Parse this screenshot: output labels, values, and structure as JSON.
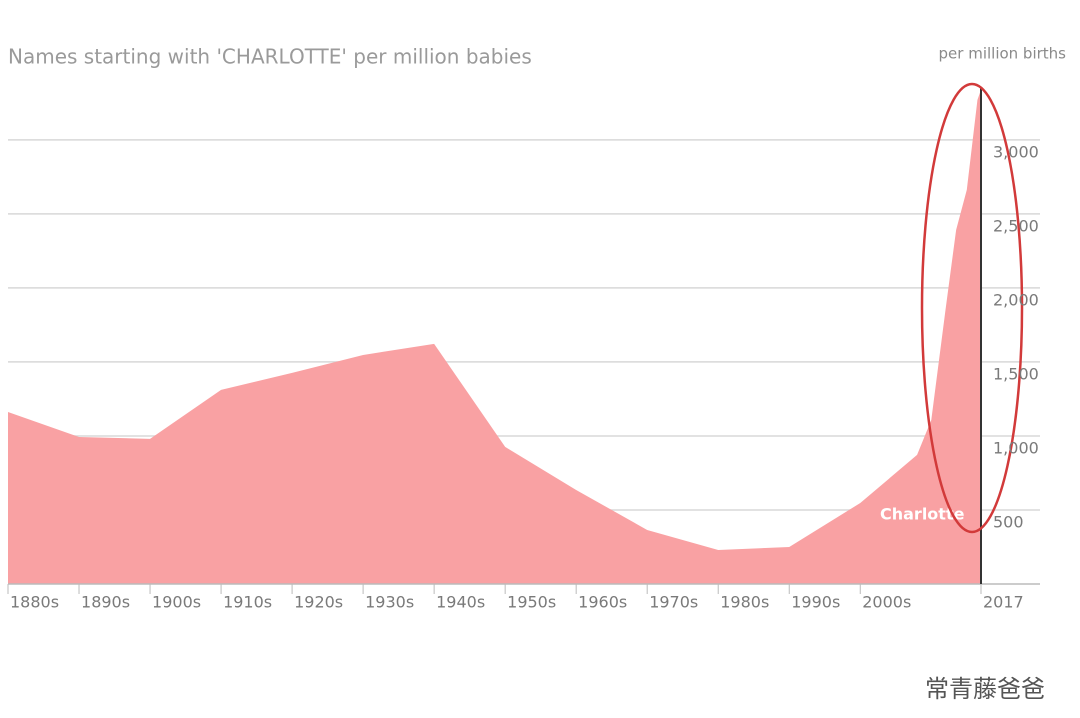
{
  "chart_data": {
    "type": "area",
    "title": "Names starting with 'CHARLOTTE' per million babies",
    "y_axis_label": "per million births",
    "annotation": "Charlotte",
    "watermark": "常青藤爸爸",
    "color": "#f9a1a3",
    "grid": true,
    "x": [
      1880,
      1890,
      1900,
      1910,
      1920,
      1930,
      1940,
      1950,
      1960,
      1970,
      1980,
      1990,
      2000,
      2008,
      2010,
      2012,
      2013.5,
      2015,
      2016.5,
      2017
    ],
    "values": [
      1162,
      993,
      980,
      1311,
      1426,
      1547,
      1622,
      926,
      635,
      365,
      230,
      250,
      547,
      872,
      1108,
      1851,
      2392,
      2662,
      3270,
      3338
    ],
    "xlim": [
      1880,
      2017
    ],
    "xticks": [
      {
        "value": 1880,
        "label": "1880s"
      },
      {
        "value": 1890,
        "label": "1890s"
      },
      {
        "value": 1900,
        "label": "1900s"
      },
      {
        "value": 1910,
        "label": "1910s"
      },
      {
        "value": 1920,
        "label": "1920s"
      },
      {
        "value": 1930,
        "label": "1930s"
      },
      {
        "value": 1940,
        "label": "1940s"
      },
      {
        "value": 1950,
        "label": "1950s"
      },
      {
        "value": 1960,
        "label": "1960s"
      },
      {
        "value": 1970,
        "label": "1970s"
      },
      {
        "value": 1980,
        "label": "1980s"
      },
      {
        "value": 1990,
        "label": "1990s"
      },
      {
        "value": 2000,
        "label": "2000s"
      },
      2017
    ],
    "ylim": [
      0,
      3350
    ],
    "yticks": [
      500,
      {
        "value": 1000,
        "label": "1,000"
      },
      {
        "value": 1500,
        "label": "1,500"
      },
      {
        "value": 2000,
        "label": "2,000"
      },
      {
        "value": 2500,
        "label": "2,500"
      },
      {
        "value": 3000,
        "label": "3,000"
      }
    ]
  }
}
